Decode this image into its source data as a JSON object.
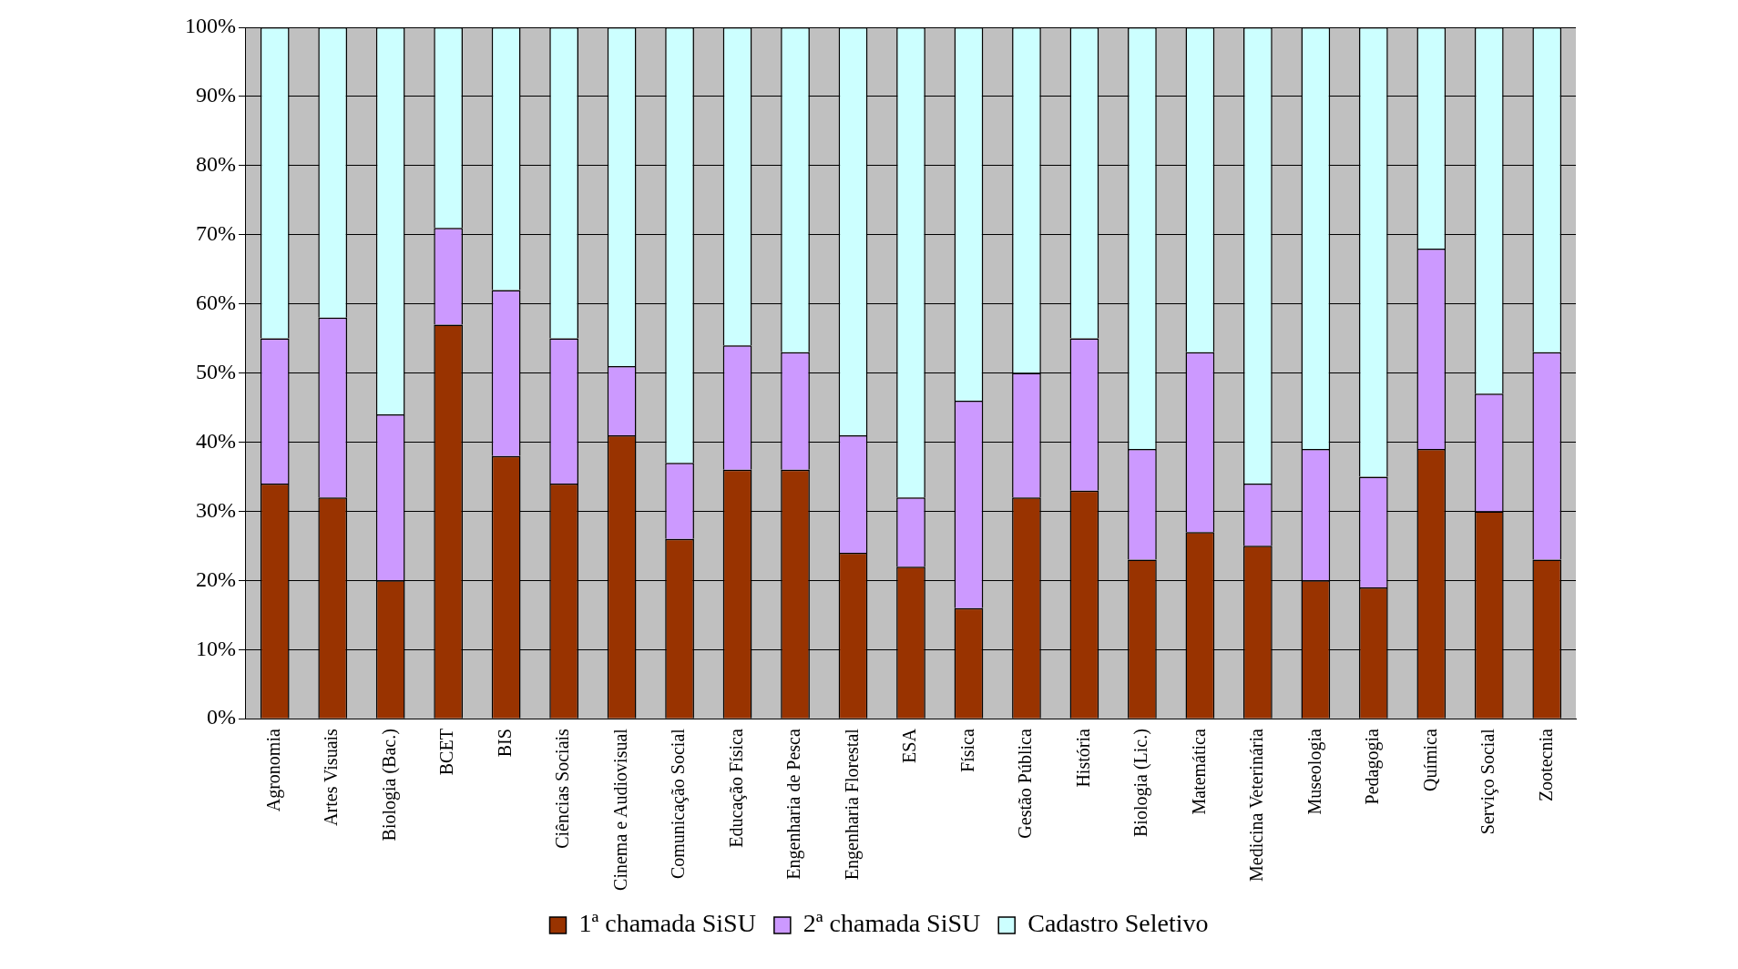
{
  "chart_data": {
    "type": "bar",
    "stacked": true,
    "categories": [
      "Agronomia",
      "Artes Visuais",
      "Biologia (Bac.)",
      "BCET",
      "BIS",
      "Ciências Sociais",
      "Cinema e Audiovisual",
      "Comunicação Social",
      "Educação Física",
      "Engenharia de Pesca",
      "Engenharia Florestal",
      "ESA",
      "Física",
      "Gestão Pública",
      "História",
      "Biologia (Lic.)",
      "Matemática",
      "Medicina Veterinária",
      "Museologia",
      "Pedagogia",
      "Química",
      "Serviço Social",
      "Zootecnia"
    ],
    "series": [
      {
        "name": "1ª chamada SiSU",
        "color": "#993300",
        "values": [
          34,
          32,
          20,
          57,
          38,
          34,
          41,
          26,
          36,
          36,
          24,
          22,
          16,
          32,
          33,
          23,
          27,
          25,
          20,
          19,
          39,
          30,
          23
        ]
      },
      {
        "name": "2ª chamada SiSU",
        "color": "#cc99ff",
        "values": [
          21,
          26,
          24,
          14,
          24,
          21,
          10,
          11,
          18,
          17,
          17,
          10,
          30,
          18,
          22,
          16,
          26,
          9,
          19,
          16,
          29,
          17,
          30
        ]
      },
      {
        "name": "Cadastro Seletivo",
        "color": "#ccffff",
        "values": [
          45,
          42,
          56,
          29,
          38,
          45,
          49,
          63,
          46,
          47,
          59,
          68,
          54,
          50,
          45,
          61,
          47,
          66,
          61,
          65,
          32,
          53,
          47
        ]
      }
    ],
    "ylim": [
      0,
      100
    ],
    "yticks": [
      {
        "value": 0,
        "label": "0%"
      },
      {
        "value": 10,
        "label": "10%"
      },
      {
        "value": 20,
        "label": "20%"
      },
      {
        "value": 30,
        "label": "30%"
      },
      {
        "value": 40,
        "label": "40%"
      },
      {
        "value": 50,
        "label": "50%"
      },
      {
        "value": 60,
        "label": "60%"
      },
      {
        "value": 70,
        "label": "70%"
      },
      {
        "value": 80,
        "label": "80%"
      },
      {
        "value": 90,
        "label": "90%"
      },
      {
        "value": 100,
        "label": "100%"
      }
    ],
    "grid": "y",
    "legend": "bottom"
  }
}
